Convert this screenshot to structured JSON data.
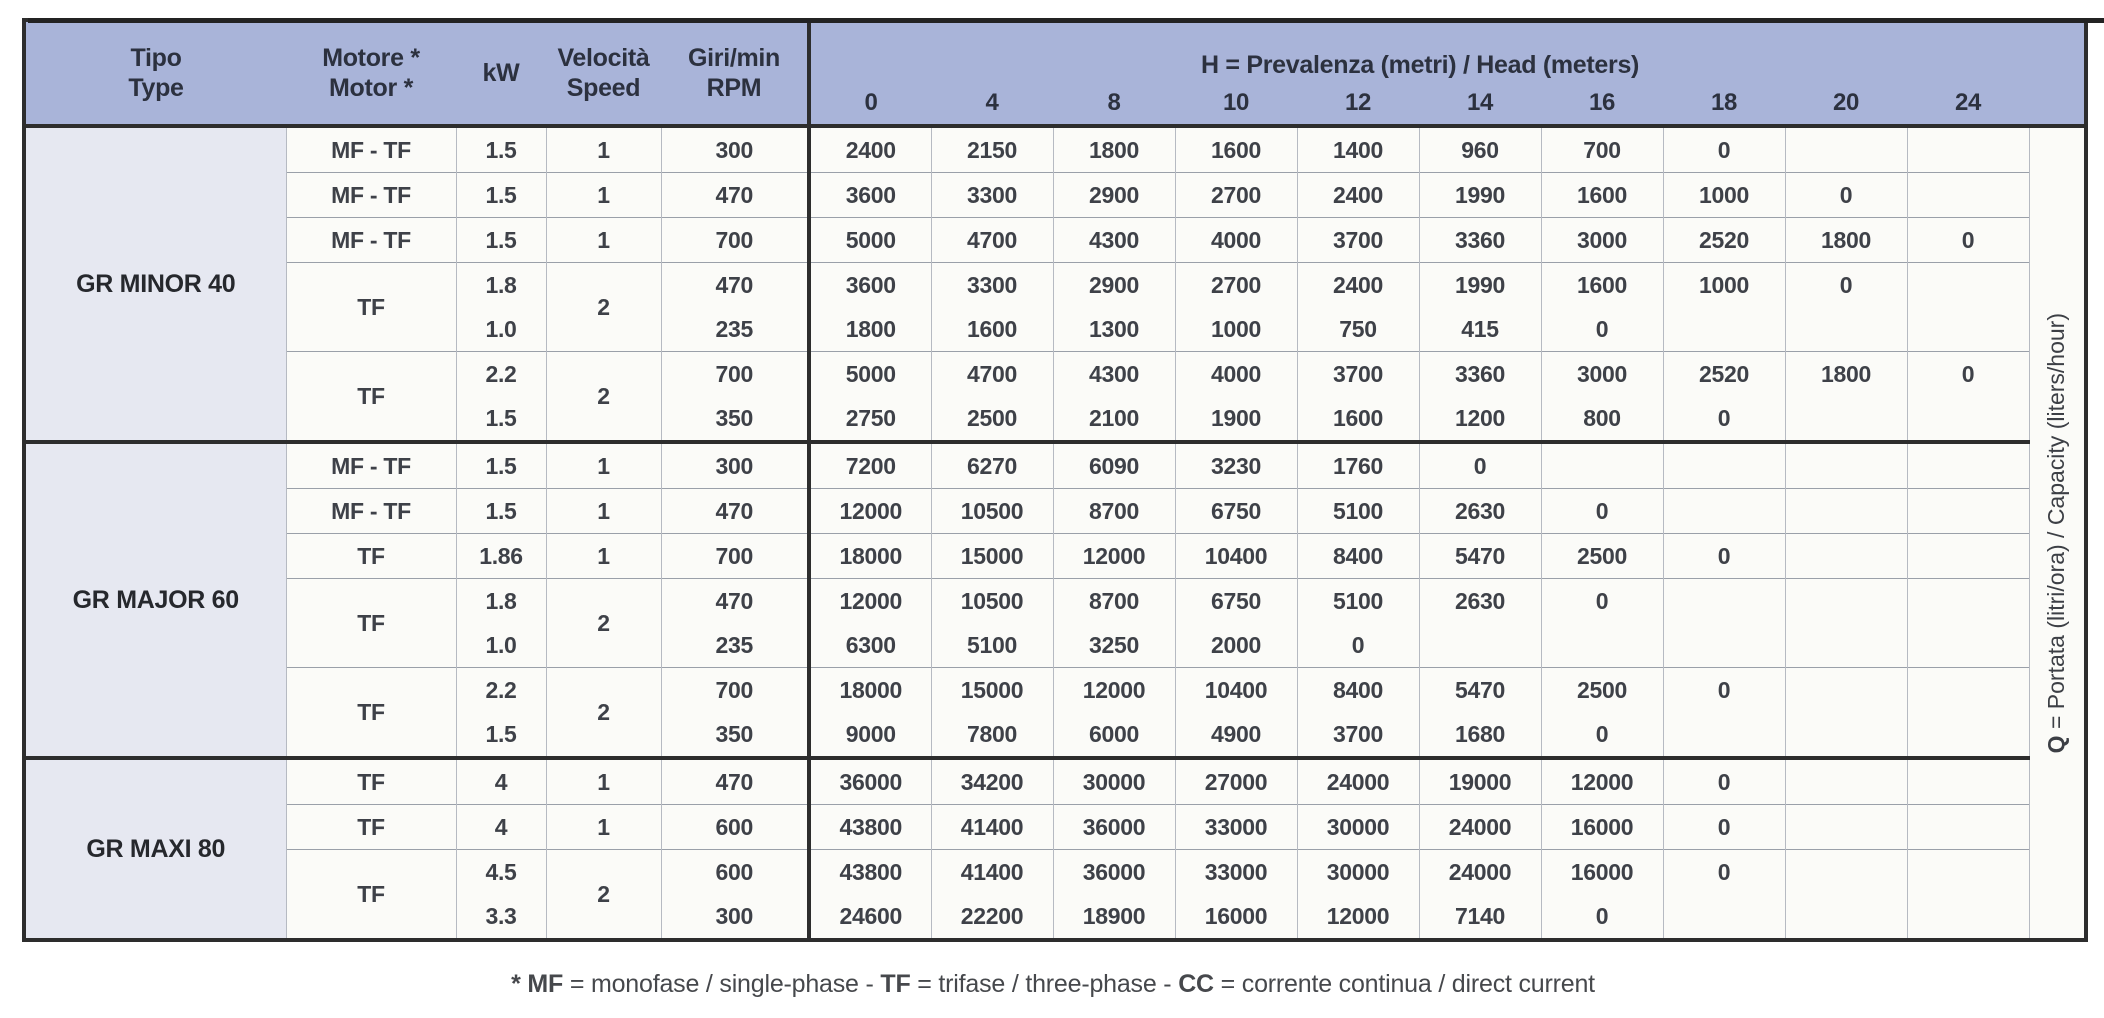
{
  "header": {
    "tipo_it": "Tipo",
    "tipo_en": "Type",
    "motore_it": "Motore *",
    "motore_en": "Motor *",
    "kw": "kW",
    "velocita_it": "Velocità",
    "velocita_en": "Speed",
    "giri_it": "Giri/min",
    "giri_en": "RPM",
    "h_title_segments": [
      {
        "text": "H",
        "bold": true
      },
      {
        "text": " = Prevalenza (metri) / Head (meters)",
        "bold": false
      }
    ],
    "h_values": [
      "0",
      "4",
      "8",
      "10",
      "12",
      "14",
      "16",
      "18",
      "20",
      "24"
    ]
  },
  "q_label_segments": [
    {
      "text": "Q",
      "bold": true
    },
    {
      "text": " = Portata (litri/ora) / Capacity (liters/hour)",
      "bold": false
    }
  ],
  "footer_segments": [
    {
      "text": "* MF",
      "bold": true
    },
    {
      "text": " = monofase / single-phase - ",
      "bold": false
    },
    {
      "text": "TF",
      "bold": true
    },
    {
      "text": " = trifase / three-phase - ",
      "bold": false
    },
    {
      "text": "CC",
      "bold": true
    },
    {
      "text": " = corrente continua / direct current",
      "bold": false
    }
  ],
  "colors": {
    "header_bg": "#a9b4d9",
    "tipo_col_bg": "#e6e8f1",
    "cell_bg": "#fbfbf8",
    "dark_border": "#2d2d2d"
  },
  "groups": [
    {
      "name": "GR MINOR 40",
      "rows": [
        {
          "motor": "MF - TF",
          "kw": [
            "1.5"
          ],
          "speed": "1",
          "rpm": [
            "300"
          ],
          "h": [
            [
              "2400"
            ],
            [
              "2150"
            ],
            [
              "1800"
            ],
            [
              "1600"
            ],
            [
              "1400"
            ],
            [
              "960"
            ],
            [
              "700"
            ],
            [
              "0"
            ],
            [
              ""
            ],
            [
              ""
            ]
          ]
        },
        {
          "motor": "MF - TF",
          "kw": [
            "1.5"
          ],
          "speed": "1",
          "rpm": [
            "470"
          ],
          "h": [
            [
              "3600"
            ],
            [
              "3300"
            ],
            [
              "2900"
            ],
            [
              "2700"
            ],
            [
              "2400"
            ],
            [
              "1990"
            ],
            [
              "1600"
            ],
            [
              "1000"
            ],
            [
              "0"
            ],
            [
              ""
            ]
          ]
        },
        {
          "motor": "MF - TF",
          "kw": [
            "1.5"
          ],
          "speed": "1",
          "rpm": [
            "700"
          ],
          "h": [
            [
              "5000"
            ],
            [
              "4700"
            ],
            [
              "4300"
            ],
            [
              "4000"
            ],
            [
              "3700"
            ],
            [
              "3360"
            ],
            [
              "3000"
            ],
            [
              "2520"
            ],
            [
              "1800"
            ],
            [
              "0"
            ]
          ]
        },
        {
          "motor": "TF",
          "kw": [
            "1.8",
            "1.0"
          ],
          "speed": "2",
          "rpm": [
            "470",
            "235"
          ],
          "h": [
            [
              "3600",
              "1800"
            ],
            [
              "3300",
              "1600"
            ],
            [
              "2900",
              "1300"
            ],
            [
              "2700",
              "1000"
            ],
            [
              "2400",
              "750"
            ],
            [
              "1990",
              "415"
            ],
            [
              "1600",
              "0"
            ],
            [
              "1000",
              ""
            ],
            [
              "0",
              ""
            ],
            [
              "",
              ""
            ]
          ]
        },
        {
          "motor": "TF",
          "kw": [
            "2.2",
            "1.5"
          ],
          "speed": "2",
          "rpm": [
            "700",
            "350"
          ],
          "h": [
            [
              "5000",
              "2750"
            ],
            [
              "4700",
              "2500"
            ],
            [
              "4300",
              "2100"
            ],
            [
              "4000",
              "1900"
            ],
            [
              "3700",
              "1600"
            ],
            [
              "3360",
              "1200"
            ],
            [
              "3000",
              "800"
            ],
            [
              "2520",
              "0"
            ],
            [
              "1800",
              ""
            ],
            [
              "0",
              ""
            ]
          ]
        }
      ]
    },
    {
      "name": "GR MAJOR 60",
      "rows": [
        {
          "motor": "MF - TF",
          "kw": [
            "1.5"
          ],
          "speed": "1",
          "rpm": [
            "300"
          ],
          "h": [
            [
              "7200"
            ],
            [
              "6270"
            ],
            [
              "6090"
            ],
            [
              "3230"
            ],
            [
              "1760"
            ],
            [
              "0"
            ],
            [
              ""
            ],
            [
              ""
            ],
            [
              ""
            ],
            [
              ""
            ]
          ]
        },
        {
          "motor": "MF - TF",
          "kw": [
            "1.5"
          ],
          "speed": "1",
          "rpm": [
            "470"
          ],
          "h": [
            [
              "12000"
            ],
            [
              "10500"
            ],
            [
              "8700"
            ],
            [
              "6750"
            ],
            [
              "5100"
            ],
            [
              "2630"
            ],
            [
              "0"
            ],
            [
              ""
            ],
            [
              ""
            ],
            [
              ""
            ]
          ]
        },
        {
          "motor": "TF",
          "kw": [
            "1.86"
          ],
          "speed": "1",
          "rpm": [
            "700"
          ],
          "h": [
            [
              "18000"
            ],
            [
              "15000"
            ],
            [
              "12000"
            ],
            [
              "10400"
            ],
            [
              "8400"
            ],
            [
              "5470"
            ],
            [
              "2500"
            ],
            [
              "0"
            ],
            [
              ""
            ],
            [
              ""
            ]
          ]
        },
        {
          "motor": "TF",
          "kw": [
            "1.8",
            "1.0"
          ],
          "speed": "2",
          "rpm": [
            "470",
            "235"
          ],
          "h": [
            [
              "12000",
              "6300"
            ],
            [
              "10500",
              "5100"
            ],
            [
              "8700",
              "3250"
            ],
            [
              "6750",
              "2000"
            ],
            [
              "5100",
              "0"
            ],
            [
              "2630",
              ""
            ],
            [
              "0",
              ""
            ],
            [
              "",
              ""
            ],
            [
              "",
              ""
            ],
            [
              "",
              ""
            ]
          ]
        },
        {
          "motor": "TF",
          "kw": [
            "2.2",
            "1.5"
          ],
          "speed": "2",
          "rpm": [
            "700",
            "350"
          ],
          "h": [
            [
              "18000",
              "9000"
            ],
            [
              "15000",
              "7800"
            ],
            [
              "12000",
              "6000"
            ],
            [
              "10400",
              "4900"
            ],
            [
              "8400",
              "3700"
            ],
            [
              "5470",
              "1680"
            ],
            [
              "2500",
              "0"
            ],
            [
              "0",
              ""
            ],
            [
              "",
              ""
            ],
            [
              "",
              ""
            ]
          ]
        }
      ]
    },
    {
      "name": "GR MAXI 80",
      "rows": [
        {
          "motor": "TF",
          "kw": [
            "4"
          ],
          "speed": "1",
          "rpm": [
            "470"
          ],
          "h": [
            [
              "36000"
            ],
            [
              "34200"
            ],
            [
              "30000"
            ],
            [
              "27000"
            ],
            [
              "24000"
            ],
            [
              "19000"
            ],
            [
              "12000"
            ],
            [
              "0"
            ],
            [
              ""
            ],
            [
              ""
            ]
          ]
        },
        {
          "motor": "TF",
          "kw": [
            "4"
          ],
          "speed": "1",
          "rpm": [
            "600"
          ],
          "h": [
            [
              "43800"
            ],
            [
              "41400"
            ],
            [
              "36000"
            ],
            [
              "33000"
            ],
            [
              "30000"
            ],
            [
              "24000"
            ],
            [
              "16000"
            ],
            [
              "0"
            ],
            [
              ""
            ],
            [
              ""
            ]
          ]
        },
        {
          "motor": "TF",
          "kw": [
            "4.5",
            "3.3"
          ],
          "speed": "2",
          "rpm": [
            "600",
            "300"
          ],
          "h": [
            [
              "43800",
              "24600"
            ],
            [
              "41400",
              "22200"
            ],
            [
              "36000",
              "18900"
            ],
            [
              "33000",
              "16000"
            ],
            [
              "30000",
              "12000"
            ],
            [
              "24000",
              "7140"
            ],
            [
              "16000",
              "0"
            ],
            [
              "0",
              ""
            ],
            [
              "",
              ""
            ],
            [
              "",
              ""
            ]
          ]
        }
      ]
    }
  ]
}
